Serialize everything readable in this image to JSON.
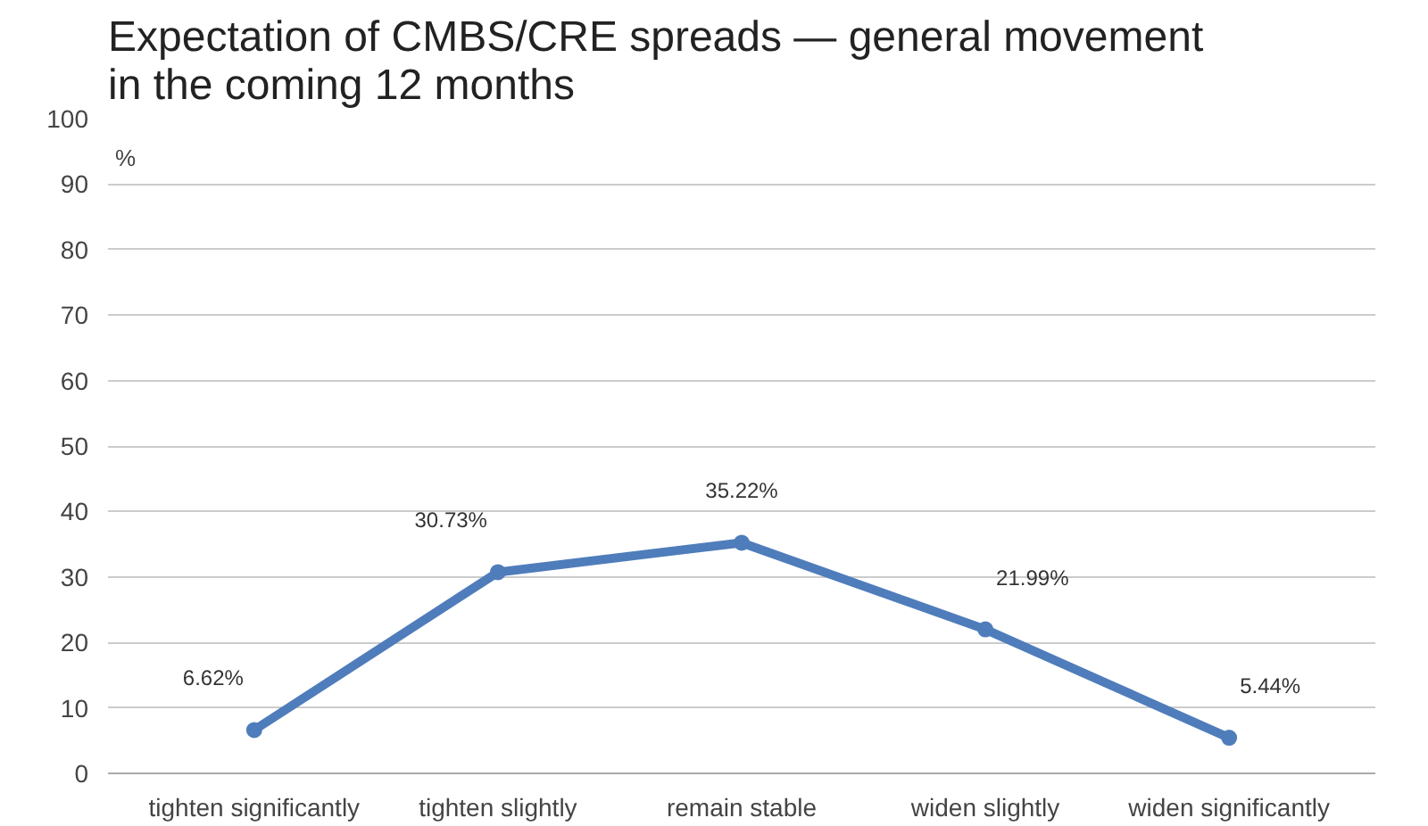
{
  "chart_data": {
    "type": "line",
    "title": "Expectation of CMBS/CRE spreads — general movement in the coming 12 months",
    "ylabel": "%",
    "categories": [
      "tighten significantly",
      "tighten slightly",
      "remain stable",
      "widen slightly",
      "widen significantly"
    ],
    "series": [
      {
        "color": "#4f7dbb",
        "values": [
          6.62,
          30.73,
          35.22,
          21.99,
          5.44
        ]
      }
    ],
    "value_labels": [
      "6.62%",
      "30.73%",
      "35.22%",
      "21.99%",
      "5.44%"
    ],
    "ylim": [
      0,
      100
    ],
    "yticks": [
      0,
      10,
      20,
      30,
      40,
      50,
      60,
      70,
      80,
      90,
      100
    ],
    "grid": "y",
    "marker": "circle",
    "line_style": "solid"
  }
}
